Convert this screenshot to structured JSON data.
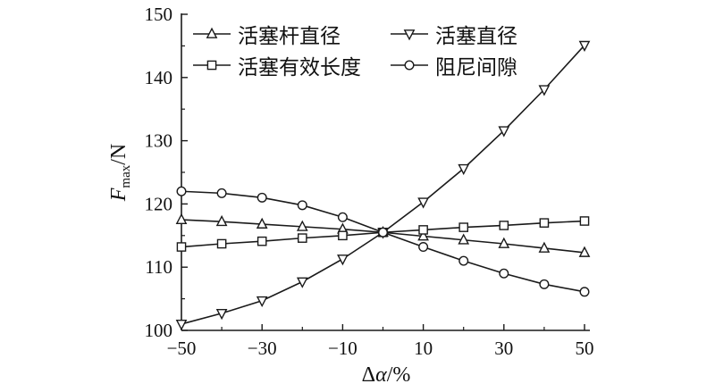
{
  "chart_data": {
    "type": "line",
    "x": [
      -50,
      -40,
      -30,
      -20,
      -10,
      0,
      10,
      20,
      30,
      40,
      50
    ],
    "xlim": [
      -50,
      50
    ],
    "ylim": [
      100,
      150
    ],
    "xticks": [
      -50,
      -30,
      -10,
      10,
      30,
      50
    ],
    "yticks": [
      100,
      110,
      120,
      130,
      140,
      150
    ],
    "xtick_labels": [
      "−50",
      "−30",
      "−10",
      "10",
      "30",
      "50"
    ],
    "ytick_labels": [
      "100",
      "110",
      "120",
      "130",
      "140",
      "150"
    ],
    "xlabel": {
      "symbol": "Δ",
      "var": "α",
      "unit": "/%"
    },
    "ylabel": {
      "var": "F",
      "sub": "max",
      "unit": "/N"
    },
    "grid": false,
    "legend_position": "top-left",
    "series": [
      {
        "name": "活塞杆直径",
        "marker": "triangle-up",
        "values": [
          117.5,
          117.2,
          116.8,
          116.4,
          116.0,
          115.5,
          114.9,
          114.3,
          113.7,
          113.0,
          112.3
        ]
      },
      {
        "name": "活塞直径",
        "marker": "triangle-down",
        "values": [
          101.0,
          102.7,
          104.7,
          107.7,
          111.3,
          115.5,
          120.3,
          125.6,
          131.6,
          138.1,
          145.1
        ]
      },
      {
        "name": "活塞有效长度",
        "marker": "square",
        "values": [
          113.2,
          113.7,
          114.1,
          114.6,
          115.0,
          115.5,
          115.9,
          116.3,
          116.6,
          117.0,
          117.3
        ]
      },
      {
        "name": "阻尼间隙",
        "marker": "circle",
        "values": [
          122.0,
          121.7,
          121.0,
          119.8,
          117.9,
          115.5,
          113.2,
          111.0,
          109.0,
          107.3,
          106.1
        ]
      }
    ],
    "colors": {
      "line": "#1a1a1a",
      "marker_fill": "#ffffff"
    }
  }
}
